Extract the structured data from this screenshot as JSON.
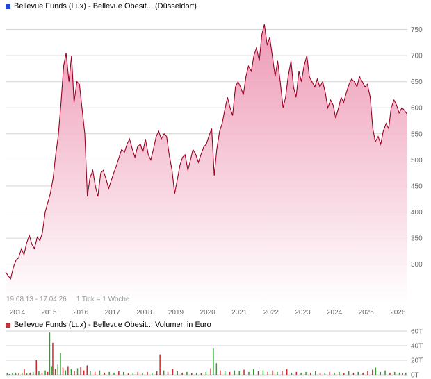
{
  "price_chart": {
    "title": "Bellevue Funds (Lux) - Bellevue Obesit... (Düsseldorf)",
    "icon_color": "#2244cc",
    "annotation": {
      "date_range": "19.08.13 - 17.04.26",
      "tick_info": "1 Tick = 1 Woche"
    }
  },
  "volume_chart": {
    "title": "Bellevue Funds (Lux) - Bellevue Obesit... Volumen in Euro",
    "icon_color": "#bb3333"
  },
  "chart_data": [
    {
      "type": "area",
      "title": "Bellevue Funds (Lux) - Bellevue Obesit... (Düsseldorf)",
      "xlabel": "",
      "ylabel": "",
      "x_range": [
        2013.63,
        2026.3
      ],
      "ylim": [
        225,
        780
      ],
      "grid": true,
      "legend_position": "none",
      "line_color": "#990022",
      "fill_top": "#ec8fae",
      "fill_bottom": "#ffffff",
      "y_ticks": [
        {
          "v": 750,
          "label": "750"
        },
        {
          "v": 700,
          "label": "700"
        },
        {
          "v": 650,
          "label": "650"
        },
        {
          "v": 600,
          "label": "600"
        },
        {
          "v": 550,
          "label": "550"
        },
        {
          "v": 500,
          "label": "500"
        },
        {
          "v": 450,
          "label": "450"
        },
        {
          "v": 400,
          "label": "400"
        },
        {
          "v": 350,
          "label": "350"
        },
        {
          "v": 300,
          "label": "300"
        }
      ],
      "x_ticks": [
        {
          "v": 2014,
          "label": "2014"
        },
        {
          "v": 2015,
          "label": "2015"
        },
        {
          "v": 2016,
          "label": "2016"
        },
        {
          "v": 2017,
          "label": "2017"
        },
        {
          "v": 2018,
          "label": "2018"
        },
        {
          "v": 2019,
          "label": "2019"
        },
        {
          "v": 2020,
          "label": "2020"
        },
        {
          "v": 2021,
          "label": "2021"
        },
        {
          "v": 2022,
          "label": "2022"
        },
        {
          "v": 2023,
          "label": "2023"
        },
        {
          "v": 2024,
          "label": "2024"
        },
        {
          "v": 2025,
          "label": "2025"
        },
        {
          "v": 2026,
          "label": "2026"
        }
      ],
      "points": [
        [
          2013.63,
          285
        ],
        [
          2013.71,
          278
        ],
        [
          2013.79,
          272
        ],
        [
          2013.88,
          295
        ],
        [
          2013.96,
          308
        ],
        [
          2014.04,
          312
        ],
        [
          2014.13,
          330
        ],
        [
          2014.21,
          318
        ],
        [
          2014.29,
          340
        ],
        [
          2014.38,
          355
        ],
        [
          2014.46,
          338
        ],
        [
          2014.54,
          330
        ],
        [
          2014.63,
          352
        ],
        [
          2014.71,
          345
        ],
        [
          2014.79,
          360
        ],
        [
          2014.88,
          400
        ],
        [
          2014.96,
          418
        ],
        [
          2015.04,
          435
        ],
        [
          2015.13,
          465
        ],
        [
          2015.21,
          510
        ],
        [
          2015.29,
          545
        ],
        [
          2015.38,
          610
        ],
        [
          2015.46,
          680
        ],
        [
          2015.54,
          705
        ],
        [
          2015.63,
          650
        ],
        [
          2015.71,
          700
        ],
        [
          2015.79,
          610
        ],
        [
          2015.88,
          650
        ],
        [
          2015.96,
          645
        ],
        [
          2016.04,
          600
        ],
        [
          2016.13,
          550
        ],
        [
          2016.21,
          430
        ],
        [
          2016.29,
          465
        ],
        [
          2016.38,
          480
        ],
        [
          2016.46,
          450
        ],
        [
          2016.54,
          430
        ],
        [
          2016.63,
          475
        ],
        [
          2016.71,
          480
        ],
        [
          2016.79,
          465
        ],
        [
          2016.88,
          445
        ],
        [
          2016.96,
          460
        ],
        [
          2017.04,
          475
        ],
        [
          2017.13,
          490
        ],
        [
          2017.21,
          505
        ],
        [
          2017.29,
          520
        ],
        [
          2017.38,
          515
        ],
        [
          2017.46,
          530
        ],
        [
          2017.54,
          540
        ],
        [
          2017.63,
          520
        ],
        [
          2017.71,
          505
        ],
        [
          2017.79,
          525
        ],
        [
          2017.88,
          530
        ],
        [
          2017.96,
          515
        ],
        [
          2018.04,
          540
        ],
        [
          2018.13,
          510
        ],
        [
          2018.21,
          500
        ],
        [
          2018.29,
          520
        ],
        [
          2018.38,
          545
        ],
        [
          2018.46,
          555
        ],
        [
          2018.54,
          540
        ],
        [
          2018.63,
          550
        ],
        [
          2018.71,
          545
        ],
        [
          2018.79,
          510
        ],
        [
          2018.88,
          480
        ],
        [
          2018.96,
          435
        ],
        [
          2019.04,
          460
        ],
        [
          2019.13,
          490
        ],
        [
          2019.21,
          505
        ],
        [
          2019.29,
          510
        ],
        [
          2019.38,
          480
        ],
        [
          2019.46,
          500
        ],
        [
          2019.54,
          520
        ],
        [
          2019.63,
          510
        ],
        [
          2019.71,
          495
        ],
        [
          2019.79,
          510
        ],
        [
          2019.88,
          525
        ],
        [
          2019.96,
          530
        ],
        [
          2020.04,
          545
        ],
        [
          2020.13,
          560
        ],
        [
          2020.21,
          470
        ],
        [
          2020.29,
          520
        ],
        [
          2020.38,
          555
        ],
        [
          2020.46,
          570
        ],
        [
          2020.54,
          595
        ],
        [
          2020.63,
          620
        ],
        [
          2020.71,
          600
        ],
        [
          2020.79,
          585
        ],
        [
          2020.88,
          640
        ],
        [
          2020.96,
          650
        ],
        [
          2021.04,
          640
        ],
        [
          2021.13,
          625
        ],
        [
          2021.21,
          660
        ],
        [
          2021.29,
          680
        ],
        [
          2021.38,
          670
        ],
        [
          2021.46,
          700
        ],
        [
          2021.54,
          715
        ],
        [
          2021.63,
          690
        ],
        [
          2021.71,
          740
        ],
        [
          2021.79,
          760
        ],
        [
          2021.88,
          720
        ],
        [
          2021.96,
          735
        ],
        [
          2022.04,
          700
        ],
        [
          2022.13,
          660
        ],
        [
          2022.21,
          690
        ],
        [
          2022.29,
          650
        ],
        [
          2022.38,
          600
        ],
        [
          2022.46,
          620
        ],
        [
          2022.54,
          660
        ],
        [
          2022.63,
          690
        ],
        [
          2022.71,
          640
        ],
        [
          2022.79,
          620
        ],
        [
          2022.88,
          670
        ],
        [
          2022.96,
          650
        ],
        [
          2023.04,
          680
        ],
        [
          2023.13,
          700
        ],
        [
          2023.21,
          660
        ],
        [
          2023.29,
          650
        ],
        [
          2023.38,
          640
        ],
        [
          2023.46,
          655
        ],
        [
          2023.54,
          640
        ],
        [
          2023.63,
          650
        ],
        [
          2023.71,
          630
        ],
        [
          2023.79,
          600
        ],
        [
          2023.88,
          615
        ],
        [
          2023.96,
          605
        ],
        [
          2024.04,
          580
        ],
        [
          2024.13,
          600
        ],
        [
          2024.21,
          620
        ],
        [
          2024.29,
          610
        ],
        [
          2024.38,
          630
        ],
        [
          2024.46,
          645
        ],
        [
          2024.54,
          655
        ],
        [
          2024.63,
          650
        ],
        [
          2024.71,
          640
        ],
        [
          2024.79,
          660
        ],
        [
          2024.88,
          650
        ],
        [
          2024.96,
          640
        ],
        [
          2025.04,
          645
        ],
        [
          2025.13,
          620
        ],
        [
          2025.21,
          560
        ],
        [
          2025.29,
          535
        ],
        [
          2025.38,
          545
        ],
        [
          2025.46,
          530
        ],
        [
          2025.54,
          555
        ],
        [
          2025.63,
          570
        ],
        [
          2025.71,
          560
        ],
        [
          2025.79,
          600
        ],
        [
          2025.88,
          615
        ],
        [
          2025.96,
          605
        ],
        [
          2026.04,
          590
        ],
        [
          2026.13,
          600
        ],
        [
          2026.21,
          595
        ],
        [
          2026.29,
          588
        ]
      ]
    },
    {
      "type": "bar",
      "title": "Bellevue Funds (Lux) - Bellevue Obesit... Volumen in Euro",
      "ylabel": "Volumen in Euro",
      "x_range": [
        2013.63,
        2026.3
      ],
      "ylim": [
        0,
        63
      ],
      "grid": true,
      "bar_colors": {
        "up": "#2f9e2f",
        "down": "#cc2a2a"
      },
      "y_ticks": [
        {
          "v": 60,
          "label": "60T"
        },
        {
          "v": 40,
          "label": "40T"
        },
        {
          "v": 20,
          "label": "20T"
        },
        {
          "v": 0,
          "label": "0T"
        }
      ],
      "bars": [
        [
          2013.68,
          2,
          "g"
        ],
        [
          2013.75,
          1,
          "r"
        ],
        [
          2013.85,
          2,
          "g"
        ],
        [
          2013.95,
          3,
          "g"
        ],
        [
          2014.05,
          2,
          "r"
        ],
        [
          2014.15,
          3,
          "g"
        ],
        [
          2014.22,
          8,
          "r"
        ],
        [
          2014.3,
          2,
          "g"
        ],
        [
          2014.4,
          3,
          "r"
        ],
        [
          2014.5,
          4,
          "g"
        ],
        [
          2014.6,
          20,
          "r"
        ],
        [
          2014.68,
          5,
          "g"
        ],
        [
          2014.78,
          3,
          "r"
        ],
        [
          2014.88,
          6,
          "g"
        ],
        [
          2014.96,
          4,
          "r"
        ],
        [
          2015.02,
          58,
          "g"
        ],
        [
          2015.08,
          12,
          "g"
        ],
        [
          2015.12,
          44,
          "r"
        ],
        [
          2015.2,
          8,
          "r"
        ],
        [
          2015.28,
          14,
          "g"
        ],
        [
          2015.36,
          30,
          "g"
        ],
        [
          2015.44,
          10,
          "r"
        ],
        [
          2015.52,
          6,
          "g"
        ],
        [
          2015.6,
          12,
          "r"
        ],
        [
          2015.7,
          8,
          "g"
        ],
        [
          2015.8,
          5,
          "r"
        ],
        [
          2015.9,
          9,
          "g"
        ],
        [
          2016.0,
          11,
          "r"
        ],
        [
          2016.1,
          6,
          "r"
        ],
        [
          2016.2,
          13,
          "r"
        ],
        [
          2016.3,
          5,
          "g"
        ],
        [
          2016.45,
          4,
          "r"
        ],
        [
          2016.6,
          6,
          "g"
        ],
        [
          2016.75,
          3,
          "r"
        ],
        [
          2016.9,
          4,
          "g"
        ],
        [
          2017.05,
          3,
          "g"
        ],
        [
          2017.2,
          5,
          "r"
        ],
        [
          2017.35,
          4,
          "g"
        ],
        [
          2017.5,
          2,
          "r"
        ],
        [
          2017.65,
          3,
          "g"
        ],
        [
          2017.8,
          4,
          "r"
        ],
        [
          2017.95,
          2,
          "g"
        ],
        [
          2018.1,
          4,
          "r"
        ],
        [
          2018.25,
          3,
          "g"
        ],
        [
          2018.4,
          5,
          "r"
        ],
        [
          2018.5,
          28,
          "r"
        ],
        [
          2018.62,
          6,
          "g"
        ],
        [
          2018.75,
          4,
          "r"
        ],
        [
          2018.9,
          8,
          "r"
        ],
        [
          2019.05,
          5,
          "g"
        ],
        [
          2019.2,
          3,
          "r"
        ],
        [
          2019.35,
          4,
          "g"
        ],
        [
          2019.5,
          2,
          "r"
        ],
        [
          2019.65,
          3,
          "g"
        ],
        [
          2019.8,
          2,
          "r"
        ],
        [
          2019.95,
          4,
          "g"
        ],
        [
          2020.1,
          9,
          "r"
        ],
        [
          2020.18,
          36,
          "g"
        ],
        [
          2020.28,
          16,
          "g"
        ],
        [
          2020.4,
          6,
          "r"
        ],
        [
          2020.55,
          5,
          "g"
        ],
        [
          2020.7,
          4,
          "r"
        ],
        [
          2020.85,
          6,
          "g"
        ],
        [
          2021.0,
          5,
          "g"
        ],
        [
          2021.15,
          7,
          "r"
        ],
        [
          2021.3,
          4,
          "g"
        ],
        [
          2021.45,
          8,
          "g"
        ],
        [
          2021.6,
          5,
          "r"
        ],
        [
          2021.75,
          6,
          "g"
        ],
        [
          2021.9,
          4,
          "r"
        ],
        [
          2022.05,
          6,
          "r"
        ],
        [
          2022.2,
          4,
          "g"
        ],
        [
          2022.35,
          5,
          "r"
        ],
        [
          2022.5,
          8,
          "r"
        ],
        [
          2022.65,
          3,
          "g"
        ],
        [
          2022.8,
          4,
          "r"
        ],
        [
          2022.95,
          3,
          "g"
        ],
        [
          2023.1,
          4,
          "g"
        ],
        [
          2023.25,
          3,
          "r"
        ],
        [
          2023.4,
          5,
          "g"
        ],
        [
          2023.55,
          2,
          "r"
        ],
        [
          2023.7,
          3,
          "g"
        ],
        [
          2023.85,
          4,
          "r"
        ],
        [
          2024.0,
          3,
          "g"
        ],
        [
          2024.15,
          4,
          "g"
        ],
        [
          2024.3,
          2,
          "r"
        ],
        [
          2024.45,
          5,
          "g"
        ],
        [
          2024.6,
          3,
          "r"
        ],
        [
          2024.75,
          4,
          "g"
        ],
        [
          2024.9,
          3,
          "r"
        ],
        [
          2025.05,
          5,
          "r"
        ],
        [
          2025.2,
          7,
          "r"
        ],
        [
          2025.3,
          10,
          "g"
        ],
        [
          2025.45,
          4,
          "g"
        ],
        [
          2025.6,
          6,
          "g"
        ],
        [
          2025.75,
          3,
          "r"
        ],
        [
          2025.9,
          4,
          "g"
        ],
        [
          2026.05,
          3,
          "g"
        ],
        [
          2026.15,
          2,
          "r"
        ],
        [
          2026.25,
          3,
          "g"
        ]
      ]
    }
  ]
}
